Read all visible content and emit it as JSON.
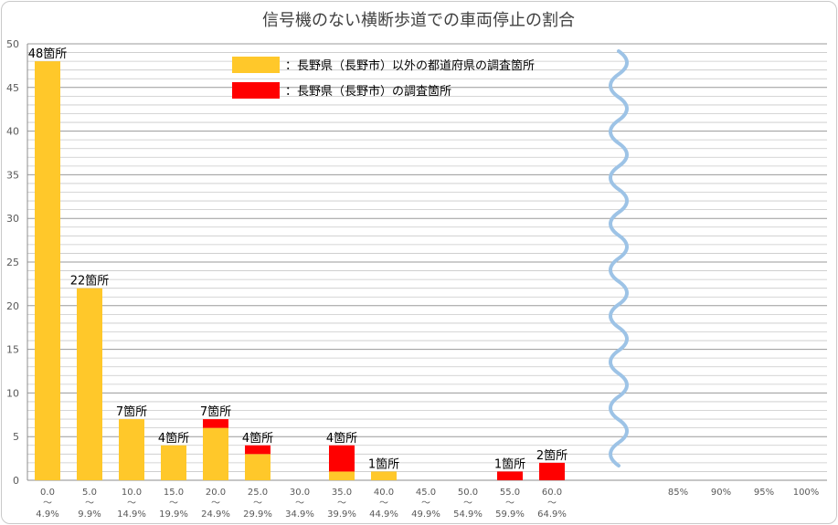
{
  "chart_data": {
    "type": "bar",
    "title": "信号機のない横断歩道での車両停止の割合",
    "categories": [
      [
        "0.0",
        "〜",
        "4.9%"
      ],
      [
        "5.0",
        "〜",
        "9.9%"
      ],
      [
        "10.0",
        "〜",
        "14.9%"
      ],
      [
        "15.0",
        "〜",
        "19.9%"
      ],
      [
        "20.0",
        "〜",
        "24.9%"
      ],
      [
        "25.0",
        "〜",
        "29.9%"
      ],
      [
        "30.0",
        "〜",
        "34.9%"
      ],
      [
        "35.0",
        "〜",
        "39.9%"
      ],
      [
        "40.0",
        "〜",
        "44.9%"
      ],
      [
        "45.0",
        "〜",
        "49.9%"
      ],
      [
        "50.0",
        "〜",
        "54.9%"
      ],
      [
        "55.0",
        "〜",
        "59.9%"
      ],
      [
        "60.0",
        "〜",
        "64.9%"
      ]
    ],
    "extra_categories": [
      "85%",
      "90%",
      "95%",
      "100%"
    ],
    "series": [
      {
        "name": "：長野県（長野市）以外の都道府県の調査箇所",
        "color": "#FFC82A",
        "values": [
          48,
          22,
          7,
          4,
          6,
          3,
          0,
          1,
          1,
          0,
          0,
          0,
          0
        ]
      },
      {
        "name": "：長野県（長野市）の調査箇所",
        "color": "#FF0000",
        "values": [
          0,
          0,
          0,
          0,
          1,
          1,
          0,
          3,
          0,
          0,
          0,
          1,
          2
        ]
      }
    ],
    "data_labels": [
      "48箇所",
      "22箇所",
      "7箇所",
      "4箇所",
      "7箇所",
      "4箇所",
      "",
      "4箇所",
      "1箇所",
      "",
      "",
      "1箇所",
      "2箇所"
    ],
    "ylim": [
      0,
      50
    ],
    "yticks": [
      0,
      5,
      10,
      15,
      20,
      25,
      30,
      35,
      40,
      45,
      50
    ],
    "stacked": true,
    "axis_break": true,
    "grid": true,
    "legend_position": "top-center"
  }
}
